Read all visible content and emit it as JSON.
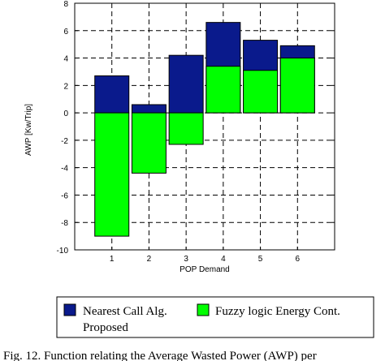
{
  "chart_data": {
    "type": "bar",
    "categories": [
      "1",
      "2",
      "3",
      "4",
      "5",
      "6"
    ],
    "series": [
      {
        "name": "Nearest Call Alg.",
        "color": "#0a1a8c",
        "values": [
          2.7,
          0.6,
          4.2,
          6.6,
          5.3,
          4.9
        ]
      },
      {
        "name": "Fuzzy logic Energy Cont.",
        "color": "#00ff00",
        "values": [
          -9.0,
          -4.4,
          -2.3,
          3.4,
          3.1,
          4.0
        ]
      }
    ],
    "xlabel": "POP Demand",
    "ylabel": "AWP [Kw/Trip]",
    "ylim": [
      -10,
      8
    ],
    "yticks": [
      "8",
      "6",
      "4",
      "2",
      "0",
      "-2",
      "-4",
      "-6",
      "-8",
      "-10"
    ],
    "grid": true,
    "legend_position": "bottom",
    "legend_proposed_label": "Proposed"
  },
  "caption": "Fig. 12. Function relating the Average Wasted Power (AWP) per"
}
